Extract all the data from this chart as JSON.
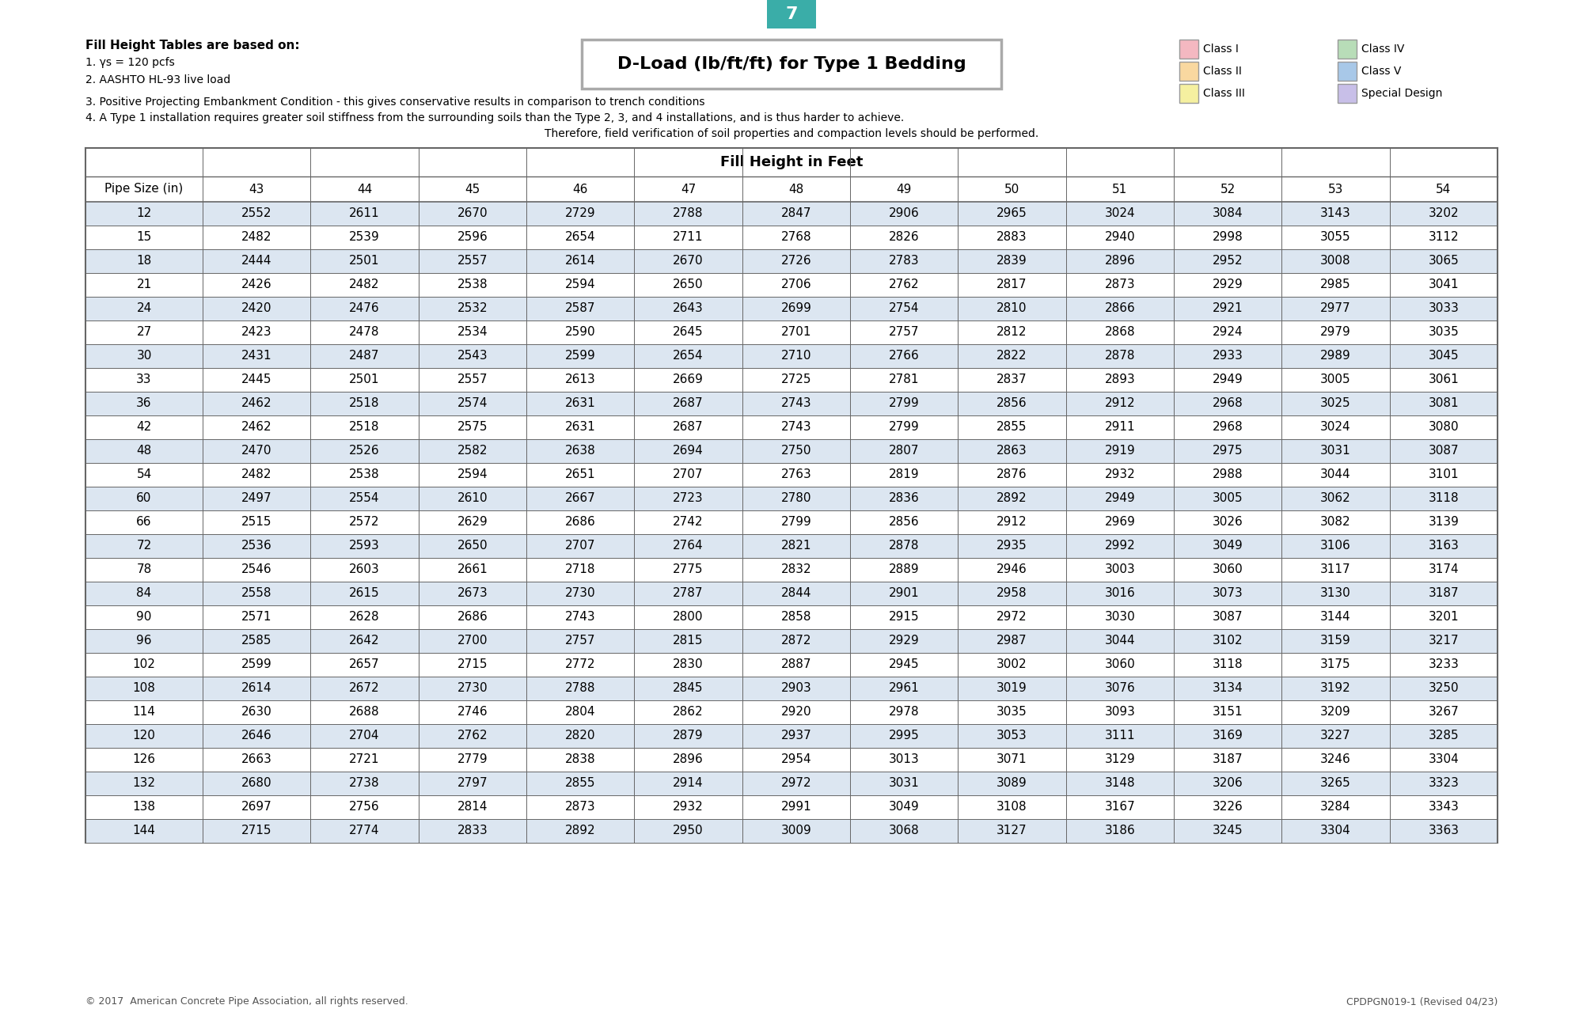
{
  "page_number": "7",
  "page_tab_color": "#3aada8",
  "title_box_text": "D-Load (lb/ft/ft) for Type 1 Bedding",
  "notes_title": "Fill Height Tables are based on:",
  "notes_line1": "1. γs = 120 pcfs",
  "notes_line2": "2. AASHTO HL-93 live load",
  "notes_line3": "3. Positive Projecting Embankment Condition - this gives conservative results in comparison to trench conditions",
  "notes_line4": "4. A Type 1 installation requires greater soil stiffness from the surrounding soils than the Type 2, 3, and 4 installations, and is thus harder to achieve.",
  "notes_line5": "Therefore, field verification of soil properties and compaction levels should be performed.",
  "legend": [
    {
      "label": "Class I",
      "color": "#f4b8c1"
    },
    {
      "label": "Class II",
      "color": "#f9d8a0"
    },
    {
      "label": "Class III",
      "color": "#f5f0a0"
    },
    {
      "label": "Class IV",
      "color": "#b8ddb8"
    },
    {
      "label": "Class V",
      "color": "#a8c8e8"
    },
    {
      "label": "Special Design",
      "color": "#c8bfe8"
    }
  ],
  "table_header_top": "Fill Height in Feet",
  "col_headers": [
    "Pipe Size (in)",
    "43",
    "44",
    "45",
    "46",
    "47",
    "48",
    "49",
    "50",
    "51",
    "52",
    "53",
    "54"
  ],
  "table_data": [
    [
      12,
      2552,
      2611,
      2670,
      2729,
      2788,
      2847,
      2906,
      2965,
      3024,
      3084,
      3143,
      3202
    ],
    [
      15,
      2482,
      2539,
      2596,
      2654,
      2711,
      2768,
      2826,
      2883,
      2940,
      2998,
      3055,
      3112
    ],
    [
      18,
      2444,
      2501,
      2557,
      2614,
      2670,
      2726,
      2783,
      2839,
      2896,
      2952,
      3008,
      3065
    ],
    [
      21,
      2426,
      2482,
      2538,
      2594,
      2650,
      2706,
      2762,
      2817,
      2873,
      2929,
      2985,
      3041
    ],
    [
      24,
      2420,
      2476,
      2532,
      2587,
      2643,
      2699,
      2754,
      2810,
      2866,
      2921,
      2977,
      3033
    ],
    [
      27,
      2423,
      2478,
      2534,
      2590,
      2645,
      2701,
      2757,
      2812,
      2868,
      2924,
      2979,
      3035
    ],
    [
      30,
      2431,
      2487,
      2543,
      2599,
      2654,
      2710,
      2766,
      2822,
      2878,
      2933,
      2989,
      3045
    ],
    [
      33,
      2445,
      2501,
      2557,
      2613,
      2669,
      2725,
      2781,
      2837,
      2893,
      2949,
      3005,
      3061
    ],
    [
      36,
      2462,
      2518,
      2574,
      2631,
      2687,
      2743,
      2799,
      2856,
      2912,
      2968,
      3025,
      3081
    ],
    [
      42,
      2462,
      2518,
      2575,
      2631,
      2687,
      2743,
      2799,
      2855,
      2911,
      2968,
      3024,
      3080
    ],
    [
      48,
      2470,
      2526,
      2582,
      2638,
      2694,
      2750,
      2807,
      2863,
      2919,
      2975,
      3031,
      3087
    ],
    [
      54,
      2482,
      2538,
      2594,
      2651,
      2707,
      2763,
      2819,
      2876,
      2932,
      2988,
      3044,
      3101
    ],
    [
      60,
      2497,
      2554,
      2610,
      2667,
      2723,
      2780,
      2836,
      2892,
      2949,
      3005,
      3062,
      3118
    ],
    [
      66,
      2515,
      2572,
      2629,
      2686,
      2742,
      2799,
      2856,
      2912,
      2969,
      3026,
      3082,
      3139
    ],
    [
      72,
      2536,
      2593,
      2650,
      2707,
      2764,
      2821,
      2878,
      2935,
      2992,
      3049,
      3106,
      3163
    ],
    [
      78,
      2546,
      2603,
      2661,
      2718,
      2775,
      2832,
      2889,
      2946,
      3003,
      3060,
      3117,
      3174
    ],
    [
      84,
      2558,
      2615,
      2673,
      2730,
      2787,
      2844,
      2901,
      2958,
      3016,
      3073,
      3130,
      3187
    ],
    [
      90,
      2571,
      2628,
      2686,
      2743,
      2800,
      2858,
      2915,
      2972,
      3030,
      3087,
      3144,
      3201
    ],
    [
      96,
      2585,
      2642,
      2700,
      2757,
      2815,
      2872,
      2929,
      2987,
      3044,
      3102,
      3159,
      3217
    ],
    [
      102,
      2599,
      2657,
      2715,
      2772,
      2830,
      2887,
      2945,
      3002,
      3060,
      3118,
      3175,
      3233
    ],
    [
      108,
      2614,
      2672,
      2730,
      2788,
      2845,
      2903,
      2961,
      3019,
      3076,
      3134,
      3192,
      3250
    ],
    [
      114,
      2630,
      2688,
      2746,
      2804,
      2862,
      2920,
      2978,
      3035,
      3093,
      3151,
      3209,
      3267
    ],
    [
      120,
      2646,
      2704,
      2762,
      2820,
      2879,
      2937,
      2995,
      3053,
      3111,
      3169,
      3227,
      3285
    ],
    [
      126,
      2663,
      2721,
      2779,
      2838,
      2896,
      2954,
      3013,
      3071,
      3129,
      3187,
      3246,
      3304
    ],
    [
      132,
      2680,
      2738,
      2797,
      2855,
      2914,
      2972,
      3031,
      3089,
      3148,
      3206,
      3265,
      3323
    ],
    [
      138,
      2697,
      2756,
      2814,
      2873,
      2932,
      2991,
      3049,
      3108,
      3167,
      3226,
      3284,
      3343
    ],
    [
      144,
      2715,
      2774,
      2833,
      2892,
      2950,
      3009,
      3068,
      3127,
      3186,
      3245,
      3304,
      3363
    ]
  ],
  "row_bg_even": "#dce6f1",
  "row_bg_odd": "#ffffff",
  "table_border_color": "#666666",
  "footer_left": "© 2017  American Concrete Pipe Association, all rights reserved.",
  "footer_right": "CPDPGN019-1 (Revised 04/23)"
}
